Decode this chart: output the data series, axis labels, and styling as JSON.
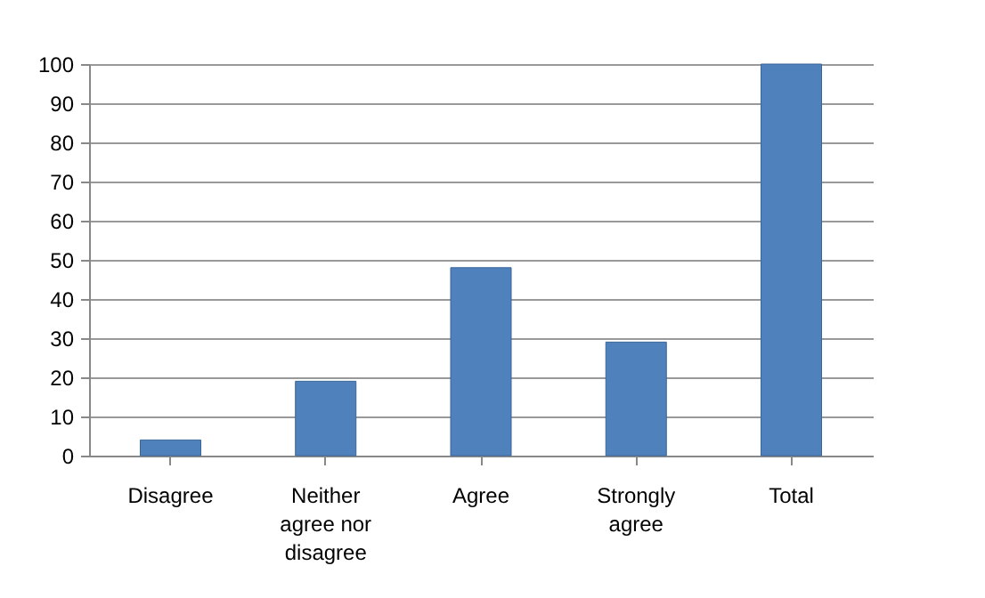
{
  "chart_data": {
    "type": "bar",
    "categories": [
      "Disagree",
      "Neither agree nor disagree",
      "Agree",
      "Strongly agree",
      "Total"
    ],
    "values": [
      4,
      19,
      48,
      29,
      100
    ],
    "color": "#4f81bd",
    "ylim": [
      0,
      100
    ],
    "yticks": [
      0,
      10,
      20,
      30,
      40,
      50,
      60,
      70,
      80,
      90,
      100
    ],
    "grid": "y"
  }
}
